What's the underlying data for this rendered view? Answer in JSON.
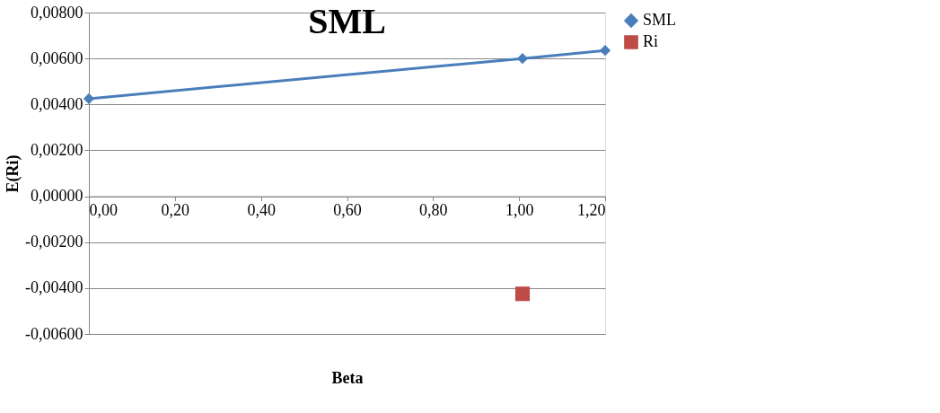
{
  "chart_data": {
    "type": "line",
    "title": "SML",
    "xlabel": "Beta",
    "ylabel": "E(Ri)",
    "xlim": [
      0,
      1.2
    ],
    "ylim": [
      -0.006,
      0.008
    ],
    "xticks": [
      {
        "value": 0,
        "label": "0,00"
      },
      {
        "value": 0.2,
        "label": "0,20"
      },
      {
        "value": 0.4,
        "label": "0,40"
      },
      {
        "value": 0.6,
        "label": "0,60"
      },
      {
        "value": 0.8,
        "label": "0,80"
      },
      {
        "value": 1.0,
        "label": "1,00"
      },
      {
        "value": 1.2,
        "label": "1,20"
      }
    ],
    "yticks": [
      {
        "value": -0.006,
        "label": "-0,00600"
      },
      {
        "value": -0.004,
        "label": "-0,00400"
      },
      {
        "value": -0.002,
        "label": "-0,00200"
      },
      {
        "value": 0,
        "label": "0,00000"
      },
      {
        "value": 0.002,
        "label": "0,00200"
      },
      {
        "value": 0.004,
        "label": "0,00400"
      },
      {
        "value": 0.006,
        "label": "0,00600"
      },
      {
        "value": 0.008,
        "label": "0,00800"
      }
    ],
    "grid": "y",
    "legend": "right",
    "series": [
      {
        "name": "SML",
        "color": "#4a7ebb",
        "marker": "diamond",
        "x": [
          0,
          1.008,
          1.2
        ],
        "values": [
          0.00425,
          0.006,
          0.00635
        ]
      },
      {
        "name": "Ri",
        "type": "scatter",
        "color": "#be4b48",
        "marker": "square",
        "x": [
          1.008
        ],
        "values": [
          -0.00425
        ]
      }
    ]
  }
}
